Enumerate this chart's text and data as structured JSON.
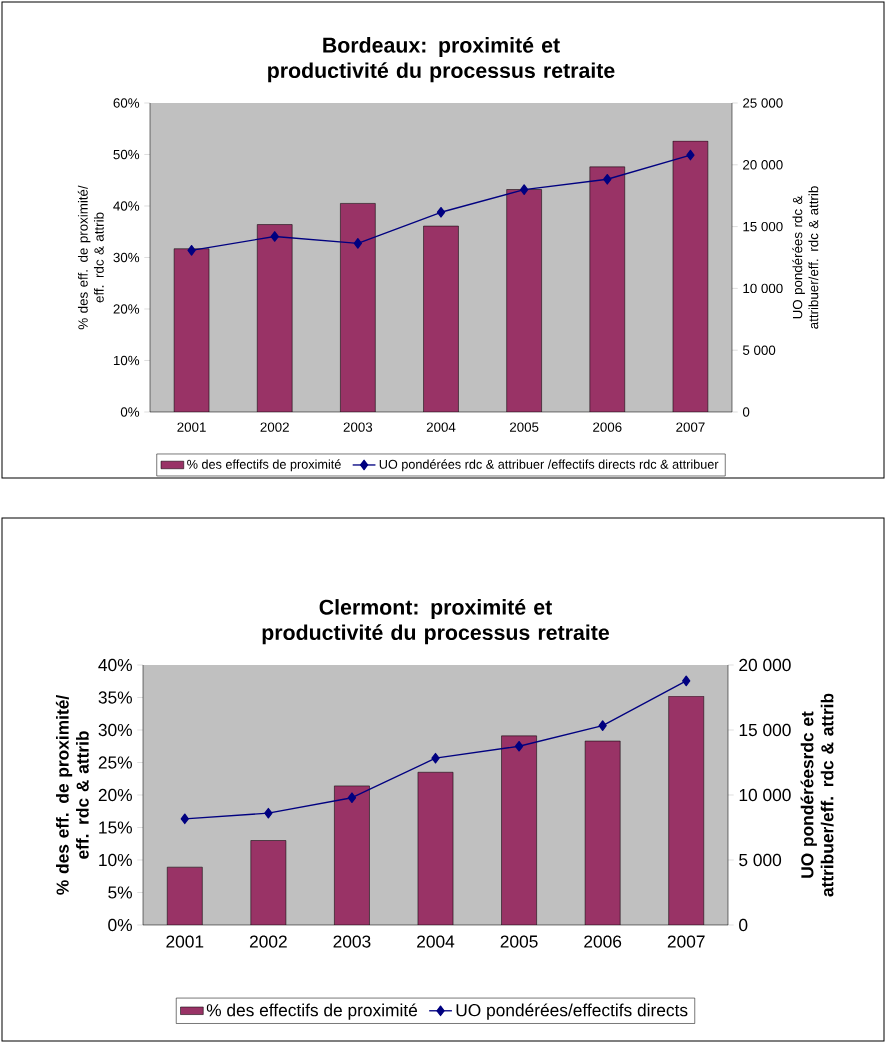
{
  "chart_data": [
    {
      "type": "bar",
      "title": "Bordeaux: proximité et productivité du processus retraite",
      "ylabel": "% des eff. de proximité/ eff. rdc & attrib",
      "y2label": "UO pondérées rdc & attribuer/eff. rdc & attrib",
      "categories": [
        "2001",
        "2002",
        "2003",
        "2004",
        "2005",
        "2006",
        "2007"
      ],
      "series": [
        {
          "name": "% des effectifs de proximité",
          "color": "#993366",
          "values": [
            31.7,
            36.4,
            40.5,
            36.1,
            43.2,
            47.6,
            52.6
          ]
        },
        {
          "name": "UO pondérées rdc & attribuer /effectifs directs rdc & attribuer",
          "type": "line",
          "axis": "y2",
          "color": "#000080",
          "marker": "diamond",
          "values": [
            13080,
            14200,
            13640,
            16160,
            17990,
            18830,
            20790
          ]
        }
      ],
      "ylim": [
        0,
        60
      ],
      "yticks": [
        {
          "value": 0,
          "label": "0%"
        },
        {
          "value": 10,
          "label": "10%"
        },
        {
          "value": 20,
          "label": "20%"
        },
        {
          "value": 30,
          "label": "30%"
        },
        {
          "value": 40,
          "label": "40%"
        },
        {
          "value": 50,
          "label": "50%"
        },
        {
          "value": 60,
          "label": "60%"
        }
      ],
      "y2lim": [
        0,
        25000
      ],
      "y2ticks": [
        {
          "value": 0,
          "label": "0"
        },
        {
          "value": 5000,
          "label": "5 000"
        },
        {
          "value": 10000,
          "label": "10 000"
        },
        {
          "value": 15000,
          "label": "15 000"
        },
        {
          "value": 20000,
          "label": "20 000"
        },
        {
          "value": 25000,
          "label": "25 000"
        }
      ],
      "legend": "bottom"
    },
    {
      "type": "bar",
      "title": "Clermont: proximité et productivité du processus retraite",
      "ylabel": "% des eff. de proximité/ eff. rdc & attrib",
      "y2label": "UO pondéréesrdc et attribuer/eff. rdc & attrib",
      "categories": [
        "2001",
        "2002",
        "2003",
        "2004",
        "2005",
        "2006",
        "2007"
      ],
      "series": [
        {
          "name": "% des effectifs de proximité",
          "color": "#993366",
          "values": [
            8.9,
            13.0,
            21.4,
            23.5,
            29.1,
            28.3,
            35.2
          ]
        },
        {
          "name": "UO pondérées/effectifs directs",
          "type": "line",
          "axis": "y2",
          "color": "#000080",
          "marker": "diamond",
          "values": [
            8170,
            8600,
            9790,
            12830,
            13750,
            15340,
            18780
          ]
        }
      ],
      "ylim": [
        0,
        40
      ],
      "yticks": [
        {
          "value": 0,
          "label": "0%"
        },
        {
          "value": 5,
          "label": "5%"
        },
        {
          "value": 10,
          "label": "10%"
        },
        {
          "value": 15,
          "label": "15%"
        },
        {
          "value": 20,
          "label": "20%"
        },
        {
          "value": 25,
          "label": "25%"
        },
        {
          "value": 30,
          "label": "30%"
        },
        {
          "value": 35,
          "label": "35%"
        },
        {
          "value": 40,
          "label": "40%"
        }
      ],
      "y2lim": [
        0,
        20000
      ],
      "y2ticks": [
        {
          "value": 0,
          "label": "0"
        },
        {
          "value": 5000,
          "label": "5 000"
        },
        {
          "value": 10000,
          "label": "10 000"
        },
        {
          "value": 15000,
          "label": "15 000"
        },
        {
          "value": 20000,
          "label": "20 000"
        }
      ],
      "legend": "bottom"
    }
  ]
}
